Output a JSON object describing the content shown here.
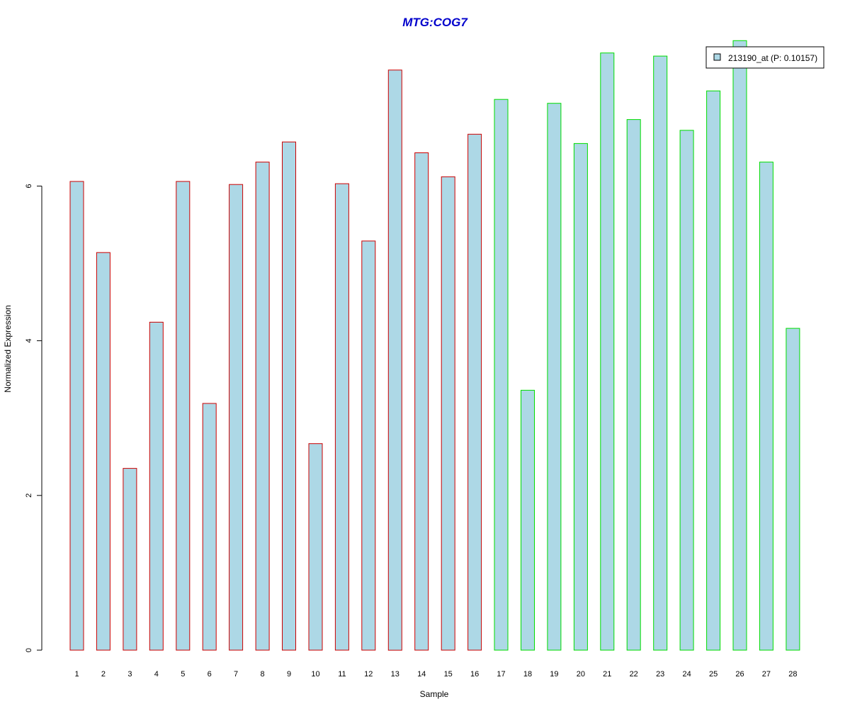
{
  "chart_data": {
    "type": "bar",
    "title": "MTG:COG7",
    "xlabel": "Sample",
    "ylabel": "Normalized Expression",
    "categories": [
      "1",
      "2",
      "3",
      "4",
      "5",
      "6",
      "7",
      "8",
      "9",
      "10",
      "11",
      "12",
      "13",
      "14",
      "15",
      "16",
      "17",
      "18",
      "19",
      "20",
      "21",
      "22",
      "23",
      "24",
      "25",
      "26",
      "27",
      "28"
    ],
    "values": [
      6.06,
      5.14,
      2.35,
      4.24,
      6.06,
      3.19,
      6.02,
      6.31,
      6.57,
      2.67,
      6.03,
      5.29,
      7.5,
      6.43,
      6.12,
      6.67,
      7.12,
      3.36,
      7.07,
      6.55,
      7.72,
      6.86,
      7.68,
      6.72,
      7.23,
      7.88,
      6.31,
      4.16
    ],
    "groups": [
      1,
      1,
      1,
      1,
      1,
      1,
      1,
      1,
      1,
      1,
      1,
      1,
      1,
      1,
      1,
      1,
      2,
      2,
      2,
      2,
      2,
      2,
      2,
      2,
      2,
      2,
      2,
      2
    ],
    "ylim": [
      0,
      8
    ],
    "yticks": [
      0,
      2,
      4,
      6
    ],
    "grid": false,
    "legend": {
      "position": "top-right",
      "label": "213190_at (P: 0.10157)"
    },
    "colors": {
      "bar_fill": "#add8e6",
      "group1_border": "#cc0000",
      "group2_border": "#00dd00",
      "title": "#0000cc",
      "axis": "#000000"
    }
  }
}
